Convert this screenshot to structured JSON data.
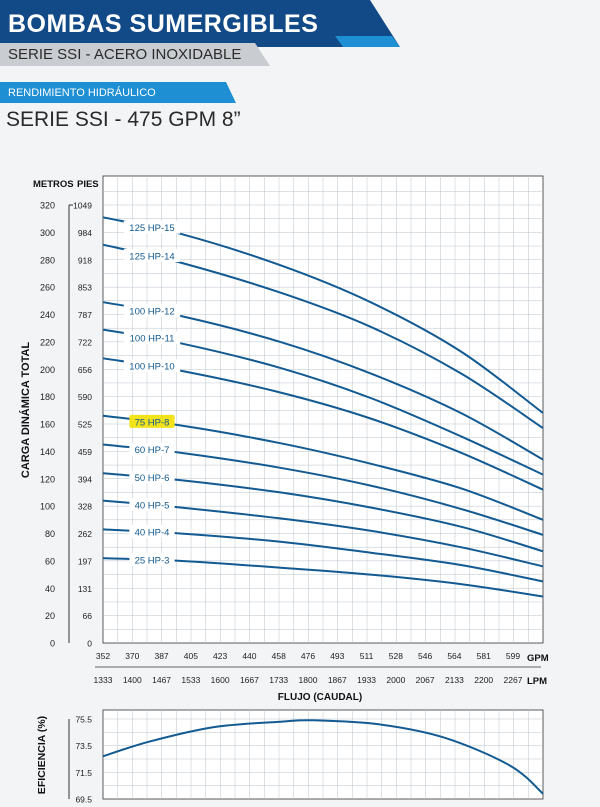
{
  "header": {
    "brand_title": "BOMBAS SUMERGIBLES",
    "series_title": "SERIE SSI - ACERO INOXIDABLE",
    "section_tag": "RENDIMIENTO HIDRÁULICO",
    "model_title": "SERIE SSI - 475 GPM 8”"
  },
  "colors": {
    "banner_dark": "#114a86",
    "banner_light": "#1e8fd2",
    "banner_gray": "#c9ccd0",
    "curve": "#125a91",
    "grid": "#b9c3cd",
    "highlight": "#f2e21a"
  },
  "chart_data": [
    {
      "type": "line",
      "title": "",
      "ylabel": "CARGA DINÁMICA TOTAL",
      "y_unit_metric": "METROS",
      "y_unit_imperial": "PIES",
      "xlabel": "FLUJO (CAUDAL)",
      "x_unit_gpm": "GPM",
      "x_unit_lpm": "LPM",
      "xlim": [
        352,
        620
      ],
      "ylim": [
        0,
        320
      ],
      "grid": true,
      "x_ticks_gpm": [
        "352",
        "370",
        "387",
        "405",
        "423",
        "440",
        "458",
        "476",
        "493",
        "511",
        "528",
        "546",
        "564",
        "581",
        "599"
      ],
      "x_ticks_lpm": [
        "1333",
        "1400",
        "1467",
        "1533",
        "1600",
        "1667",
        "1733",
        "1800",
        "1867",
        "1933",
        "2000",
        "2067",
        "2133",
        "2200",
        "2267"
      ],
      "y_ticks_m": [
        "0",
        "20",
        "40",
        "60",
        "80",
        "100",
        "120",
        "140",
        "160",
        "180",
        "200",
        "220",
        "240",
        "260",
        "280",
        "300",
        "320"
      ],
      "y_ticks_ft": [
        "0",
        "66",
        "131",
        "197",
        "262",
        "328",
        "394",
        "459",
        "525",
        "590",
        "656",
        "722",
        "787",
        "853",
        "918",
        "984",
        "1049"
      ],
      "x": [
        352,
        399,
        460,
        515,
        570,
        620
      ],
      "series": [
        {
          "name": "125 HP-15",
          "values": [
            311,
            299,
            276,
            249,
            213,
            168
          ],
          "highlight": false
        },
        {
          "name": "125 HP-14",
          "values": [
            291,
            278,
            256,
            231,
            197,
            157
          ],
          "highlight": false
        },
        {
          "name": "100 HP-12",
          "values": [
            249,
            239,
            220,
            197,
            168,
            134
          ],
          "highlight": false
        },
        {
          "name": "100 HP-11",
          "values": [
            229,
            219,
            201,
            179,
            151,
            123
          ],
          "highlight": false
        },
        {
          "name": "100 HP-10",
          "values": [
            208,
            199,
            183,
            164,
            139,
            112
          ],
          "highlight": false
        },
        {
          "name": "75 HP-8",
          "values": [
            166,
            159,
            146,
            131,
            113,
            90
          ],
          "highlight": true
        },
        {
          "name": "60 HP-7",
          "values": [
            145,
            139,
            128,
            115,
            98,
            79
          ],
          "highlight": false
        },
        {
          "name": "50 HP-6",
          "values": [
            124,
            119,
            110,
            99,
            85,
            67
          ],
          "highlight": false
        },
        {
          "name": "40 HP-5",
          "values": [
            104,
            99,
            91,
            82,
            70,
            56
          ],
          "highlight": false
        },
        {
          "name": "40 HP-4",
          "values": [
            83,
            80,
            74,
            66,
            57,
            45
          ],
          "highlight": false
        },
        {
          "name": "25 HP-3",
          "values": [
            62,
            60,
            55,
            50,
            43,
            34
          ],
          "highlight": false
        }
      ]
    },
    {
      "type": "line",
      "title": "",
      "ylabel": "EFICIENCIA (%)",
      "xlim": [
        352,
        620
      ],
      "ylim": [
        69.5,
        75.5
      ],
      "y_ticks": [
        "69.5",
        "71.5",
        "73.5",
        "75.5"
      ],
      "grid": true,
      "x": [
        352,
        380,
        420,
        460,
        480,
        520,
        560,
        600,
        620
      ],
      "series": [
        {
          "values": [
            72.7,
            73.8,
            74.9,
            75.3,
            75.4,
            75.1,
            74.1,
            72.0,
            69.9
          ]
        }
      ]
    }
  ]
}
